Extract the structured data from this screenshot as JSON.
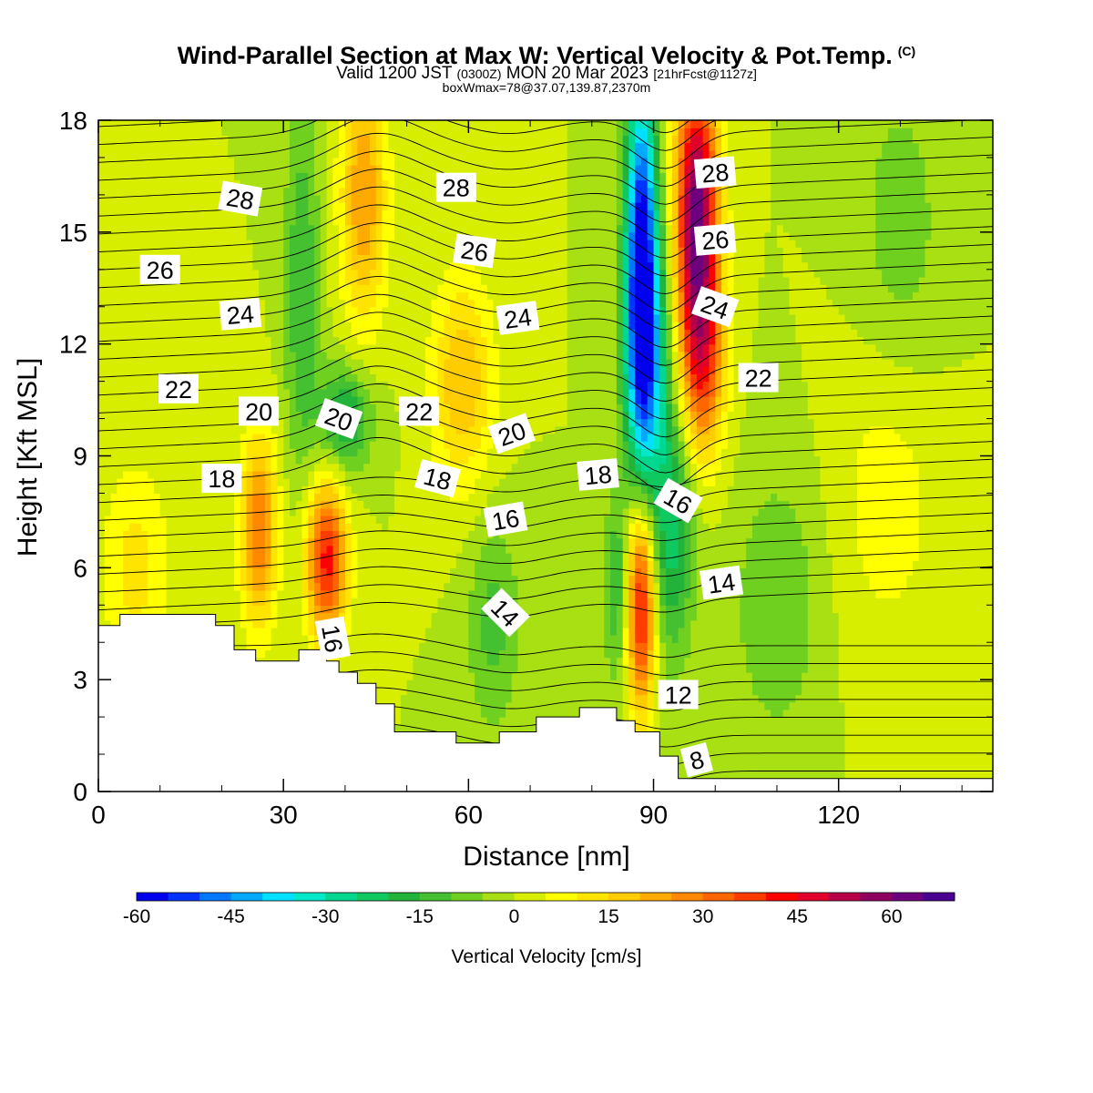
{
  "title": "Wind-Parallel Section at Max W: Vertical Velocity & Pot.Temp.",
  "copyright": "(C)",
  "subtitle": {
    "valid_prefix": "Valid 1200 JST",
    "utc": "(0300Z)",
    "date": "MON 20 Mar 2023",
    "forecast": "[21hrFcst@1127z]"
  },
  "box_note": "boxWmax=78@37.07,139.87,2370m",
  "chart_data": {
    "type": "heatmap",
    "xlabel": "Distance [nm]",
    "ylabel": "Height [Kft MSL]",
    "xlim": [
      0,
      145
    ],
    "ylim": [
      0,
      18
    ],
    "x_ticks": [
      "0",
      "30",
      "60",
      "90",
      "120"
    ],
    "y_ticks": [
      "0",
      "3",
      "6",
      "9",
      "12",
      "15",
      "18"
    ],
    "colorbar": {
      "label": "Vertical Velocity [cm/s]",
      "ticks": [
        "-60",
        "-45",
        "-30",
        "-15",
        "0",
        "15",
        "30",
        "45",
        "60"
      ],
      "min": -60,
      "max": 70,
      "step": 5,
      "colors": [
        "#0000ee",
        "#0033ff",
        "#0077ff",
        "#00a8ff",
        "#00e0ff",
        "#00e8c8",
        "#00d890",
        "#10c860",
        "#22b43a",
        "#44c030",
        "#70d020",
        "#a8e014",
        "#d8ee00",
        "#ffff00",
        "#ffe400",
        "#ffcc00",
        "#ffaa00",
        "#ff8800",
        "#ff6600",
        "#ff3c00",
        "#ff0000",
        "#e0002a",
        "#b80048",
        "#900060",
        "#6e0080",
        "#4a0090"
      ]
    },
    "background_w_cm_s": 0,
    "w_features": [
      {
        "x": 88,
        "y": 14.5,
        "w": -55,
        "sx": 1.8,
        "sy": 3.6
      },
      {
        "x": 89,
        "y": 11.5,
        "w": -30,
        "sx": 2.5,
        "sy": 2.5
      },
      {
        "x": 97,
        "y": 15.5,
        "w": 62,
        "sx": 2.4,
        "sy": 2.6
      },
      {
        "x": 98,
        "y": 11.5,
        "w": 32,
        "sx": 2.5,
        "sy": 1.8
      },
      {
        "x": 88,
        "y": 5.0,
        "w": 45,
        "sx": 1.6,
        "sy": 2.0
      },
      {
        "x": 93,
        "y": 7.0,
        "w": -22,
        "sx": 2.4,
        "sy": 2.4
      },
      {
        "x": 84,
        "y": 5.5,
        "w": -15,
        "sx": 1.4,
        "sy": 1.8
      },
      {
        "x": 37,
        "y": 6.2,
        "w": 42,
        "sx": 2.3,
        "sy": 1.5
      },
      {
        "x": 26,
        "y": 7.0,
        "w": 30,
        "sx": 2.1,
        "sy": 1.8
      },
      {
        "x": 43,
        "y": 16.0,
        "w": 25,
        "sx": 2.6,
        "sy": 2.5
      },
      {
        "x": 59,
        "y": 11.0,
        "w": 20,
        "sx": 3.5,
        "sy": 2.0
      },
      {
        "x": 40,
        "y": 10.0,
        "w": -22,
        "sx": 3.0,
        "sy": 1.0
      },
      {
        "x": 33,
        "y": 13.5,
        "w": -15,
        "sx": 2.0,
        "sy": 3.5
      },
      {
        "x": 64,
        "y": 4.5,
        "w": -12,
        "sx": 3.0,
        "sy": 2.0
      },
      {
        "x": 110,
        "y": 5.0,
        "w": -10,
        "sx": 5.0,
        "sy": 2.5
      },
      {
        "x": 130,
        "y": 15.0,
        "w": -8,
        "sx": 5.0,
        "sy": 3.0
      },
      {
        "x": 6,
        "y": 6.0,
        "w": 12,
        "sx": 4.0,
        "sy": 2.0
      },
      {
        "x": 128,
        "y": 8.0,
        "w": 8,
        "sx": 6.0,
        "sy": 3.0
      }
    ],
    "terrain_kft": [
      [
        0,
        4.45
      ],
      [
        3.5,
        4.45
      ],
      [
        3.5,
        4.75
      ],
      [
        19,
        4.75
      ],
      [
        19,
        4.45
      ],
      [
        22,
        4.45
      ],
      [
        22,
        3.8
      ],
      [
        25.5,
        3.8
      ],
      [
        25.5,
        3.5
      ],
      [
        32.5,
        3.5
      ],
      [
        32.5,
        3.8
      ],
      [
        37,
        3.8
      ],
      [
        37,
        3.5
      ],
      [
        39,
        3.5
      ],
      [
        39,
        3.2
      ],
      [
        42,
        3.2
      ],
      [
        42,
        2.9
      ],
      [
        45,
        2.9
      ],
      [
        45,
        2.35
      ],
      [
        48,
        2.35
      ],
      [
        48,
        1.6
      ],
      [
        58,
        1.6
      ],
      [
        58,
        1.3
      ],
      [
        65,
        1.3
      ],
      [
        65,
        1.6
      ],
      [
        71,
        1.6
      ],
      [
        71,
        2.0
      ],
      [
        78,
        2.0
      ],
      [
        78,
        2.25
      ],
      [
        84,
        2.25
      ],
      [
        84,
        1.9
      ],
      [
        87,
        1.9
      ],
      [
        87,
        1.6
      ],
      [
        91,
        1.6
      ],
      [
        91,
        0.95
      ],
      [
        94,
        0.95
      ],
      [
        94,
        0.35
      ],
      [
        145,
        0.35
      ]
    ],
    "theta_contours": [
      {
        "label": "8",
        "base": 0.55,
        "lx": 97,
        "ly": 0.85,
        "rot": -15
      },
      {
        "label": "12",
        "base": 1.95,
        "lx": 94,
        "ly": 2.6,
        "rot": 0
      },
      {
        "label": "14",
        "base": 3.05,
        "lx": 101,
        "ly": 5.6,
        "rot": -8
      },
      {
        "label": "14",
        "base": 3.05,
        "lx": 66,
        "ly": 4.8,
        "rot": 45
      },
      {
        "label": "16",
        "base": 4.95,
        "lx": 66,
        "ly": 7.3,
        "rot": -10
      },
      {
        "label": "16",
        "base": 4.95,
        "lx": 94,
        "ly": 7.8,
        "rot": 30
      },
      {
        "label": "16",
        "base": 4.95,
        "lx": 38,
        "ly": 4.1,
        "rot": 80
      },
      {
        "label": "18",
        "base": 7.0,
        "lx": 20,
        "ly": 8.4,
        "rot": 0
      },
      {
        "label": "18",
        "base": 7.0,
        "lx": 55,
        "ly": 8.4,
        "rot": 15
      },
      {
        "label": "18",
        "base": 7.0,
        "lx": 81,
        "ly": 8.5,
        "rot": -5
      },
      {
        "label": "20",
        "base": 9.0,
        "lx": 26,
        "ly": 10.2,
        "rot": 0
      },
      {
        "label": "20",
        "base": 9.0,
        "lx": 39,
        "ly": 10.0,
        "rot": 20
      },
      {
        "label": "20",
        "base": 9.0,
        "lx": 67,
        "ly": 9.6,
        "rot": -20
      },
      {
        "label": "22",
        "base": 10.6,
        "lx": 13,
        "ly": 10.8,
        "rot": 0
      },
      {
        "label": "22",
        "base": 10.6,
        "lx": 52,
        "ly": 10.2,
        "rot": 0
      },
      {
        "label": "22",
        "base": 10.6,
        "lx": 107,
        "ly": 11.1,
        "rot": 0
      },
      {
        "label": "24",
        "base": 12.3,
        "lx": 23,
        "ly": 12.8,
        "rot": -5
      },
      {
        "label": "24",
        "base": 12.3,
        "lx": 68,
        "ly": 12.7,
        "rot": -8
      },
      {
        "label": "24",
        "base": 12.3,
        "lx": 100,
        "ly": 13.0,
        "rot": 20
      },
      {
        "label": "26",
        "base": 14.2,
        "lx": 10,
        "ly": 14.0,
        "rot": 0
      },
      {
        "label": "26",
        "base": 14.2,
        "lx": 61,
        "ly": 14.5,
        "rot": 8
      },
      {
        "label": "26",
        "base": 14.2,
        "lx": 100,
        "ly": 14.8,
        "rot": -5
      },
      {
        "label": "28",
        "base": 16.5,
        "lx": 23,
        "ly": 15.9,
        "rot": 10
      },
      {
        "label": "28",
        "base": 16.5,
        "lx": 58,
        "ly": 16.2,
        "rot": 0
      },
      {
        "label": "28",
        "base": 16.5,
        "lx": 100,
        "ly": 16.6,
        "rot": -5
      }
    ]
  }
}
